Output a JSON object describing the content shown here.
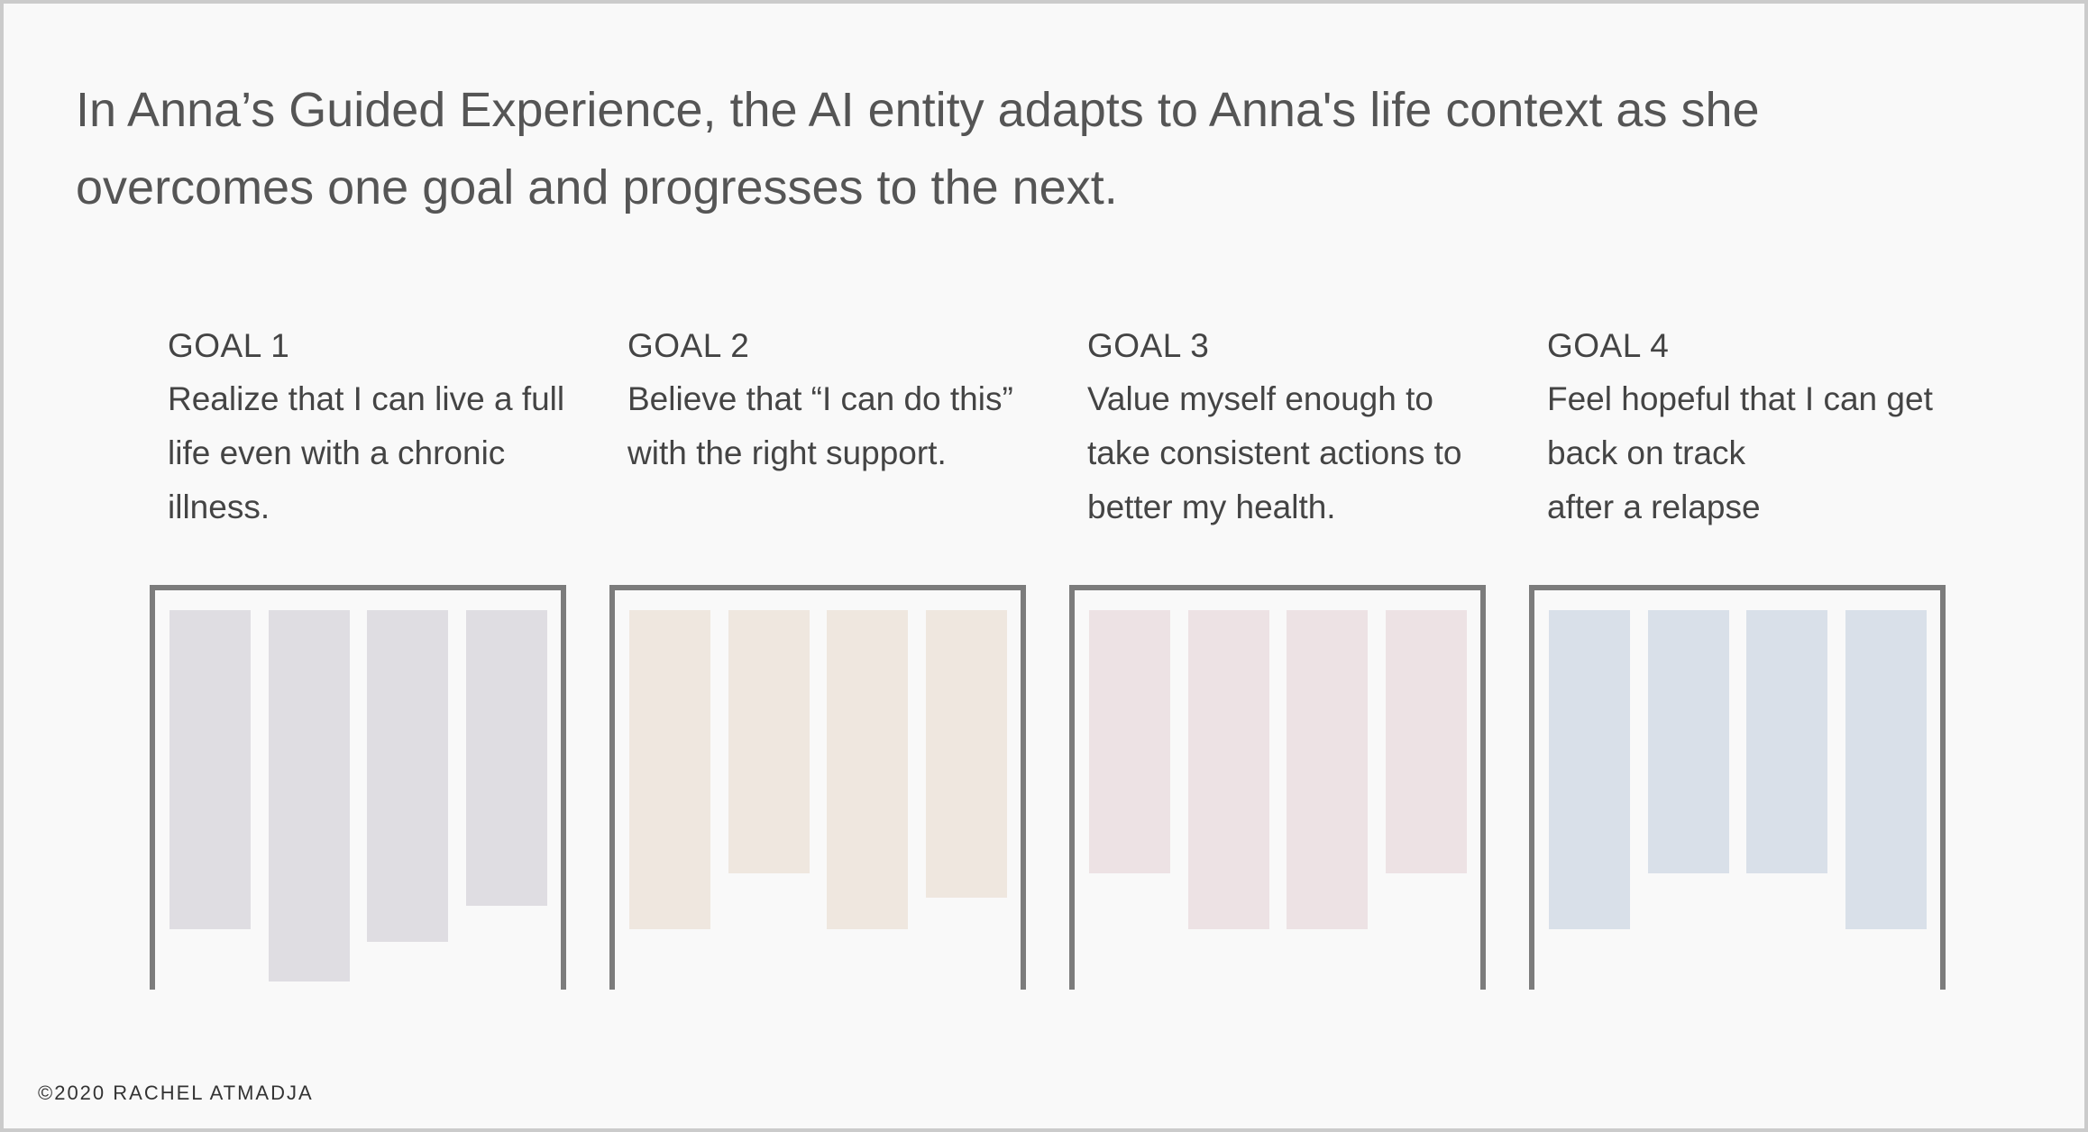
{
  "headline": "In Anna’s Guided Experience, the AI entity adapts to Anna's life context as she overcomes one goal and progresses to the next.",
  "goals": [
    {
      "label": "GOAL 1",
      "text": "Realize that I can live a full\nlife even with a chronic\nillness.",
      "color": "#dfdde2",
      "bar_levels": [
        0.8,
        0.93,
        0.83,
        0.74
      ]
    },
    {
      "label": "GOAL 2",
      "text": "Believe that “I can do this”\nwith the right support.",
      "color": "#efe7df",
      "bar_levels": [
        0.8,
        0.66,
        0.8,
        0.72
      ]
    },
    {
      "label": "GOAL 3",
      "text": "Value myself enough to\ntake consistent actions to\nbetter my health.",
      "color": "#ede2e4",
      "bar_levels": [
        0.66,
        0.8,
        0.8,
        0.66
      ]
    },
    {
      "label": "GOAL 4",
      "text": "Feel hopeful that I can get\nback on track\nafter a relapse",
      "color": "#d9e0e9",
      "bar_levels": [
        0.8,
        0.66,
        0.66,
        0.8
      ]
    }
  ],
  "credit": "©2020 RACHEL ATMADJA"
}
